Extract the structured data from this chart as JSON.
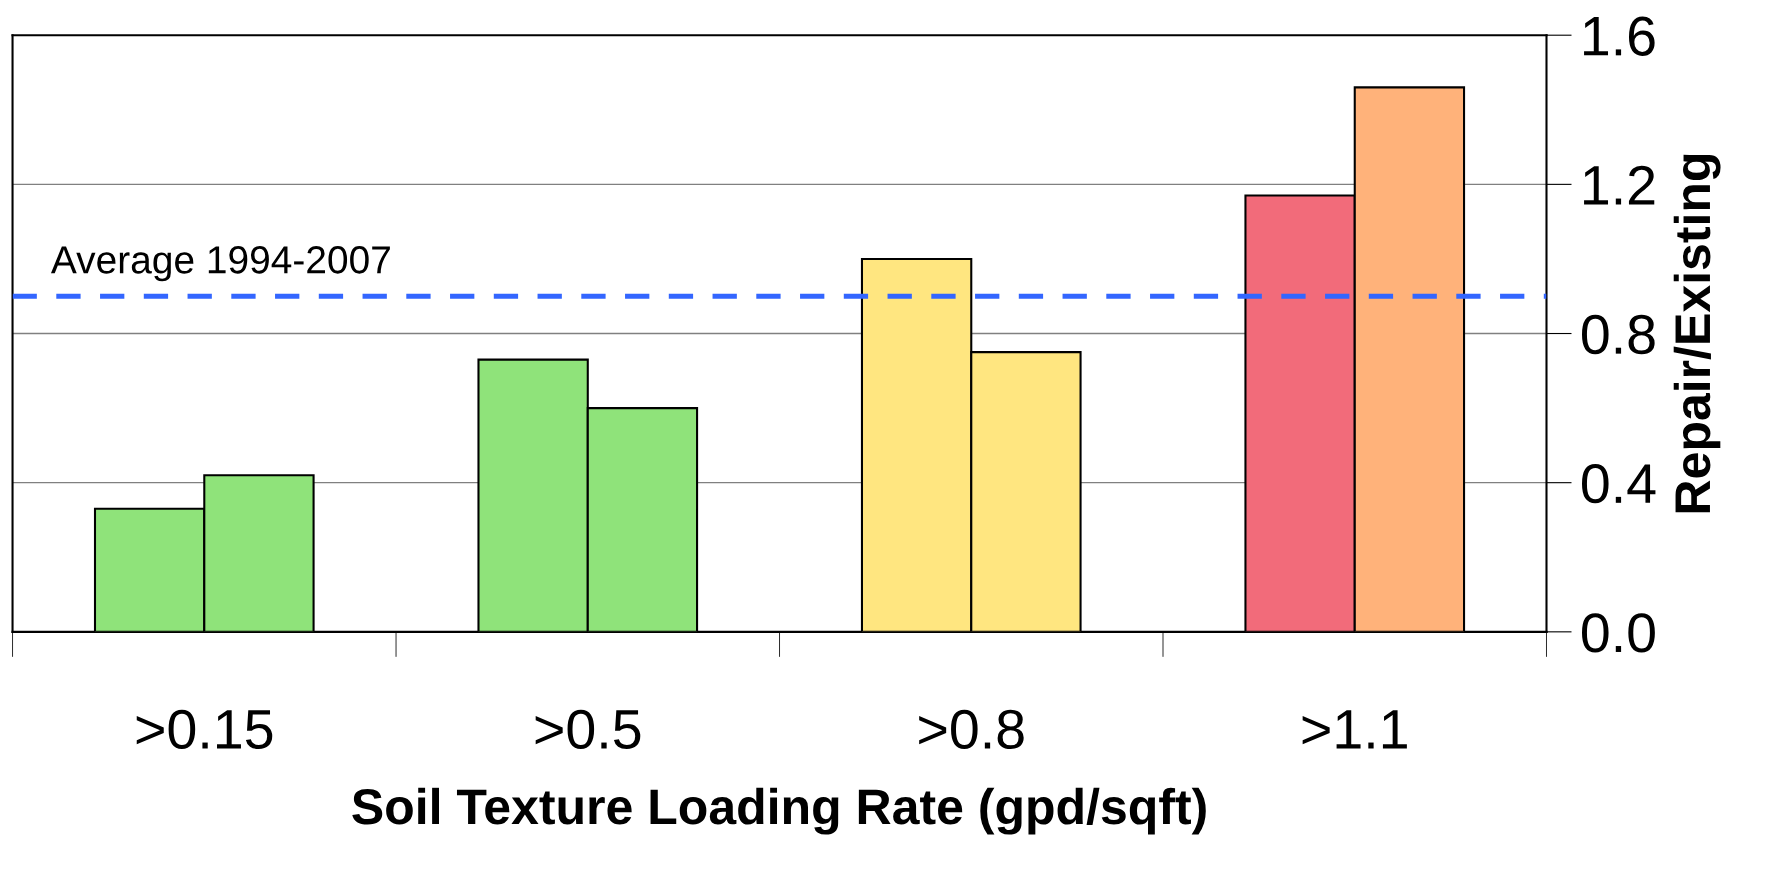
{
  "chart_data": {
    "type": "bar",
    "xlabel": "Soil Texture Loading Rate (gpd/sqft)",
    "ylabel": "Repair/Existing",
    "categories": [
      ">0.15",
      ">0.5",
      ">0.8",
      ">1.1"
    ],
    "series": [
      {
        "colors": [
          "#8fe37a",
          "#8fe37a",
          "#ffe680",
          "#f26b7a"
        ],
        "values": [
          0.33,
          0.73,
          1.0,
          1.17
        ]
      },
      {
        "colors": [
          "#8fe37a",
          "#8fe37a",
          "#ffe680",
          "#ffb27a"
        ],
        "values": [
          0.42,
          0.6,
          0.75,
          1.46
        ]
      }
    ],
    "ylim": [
      0,
      1.6
    ],
    "yticks": [
      {
        "value": 0,
        "label": "0.0"
      },
      0.4,
      0.8,
      1.2,
      1.6
    ],
    "grid": "y",
    "ref_lines": [
      {
        "axis": "y",
        "value": 0.9,
        "label": "Average 1994-2007",
        "color": "#3366ff",
        "line_style": "dashed"
      }
    ]
  }
}
